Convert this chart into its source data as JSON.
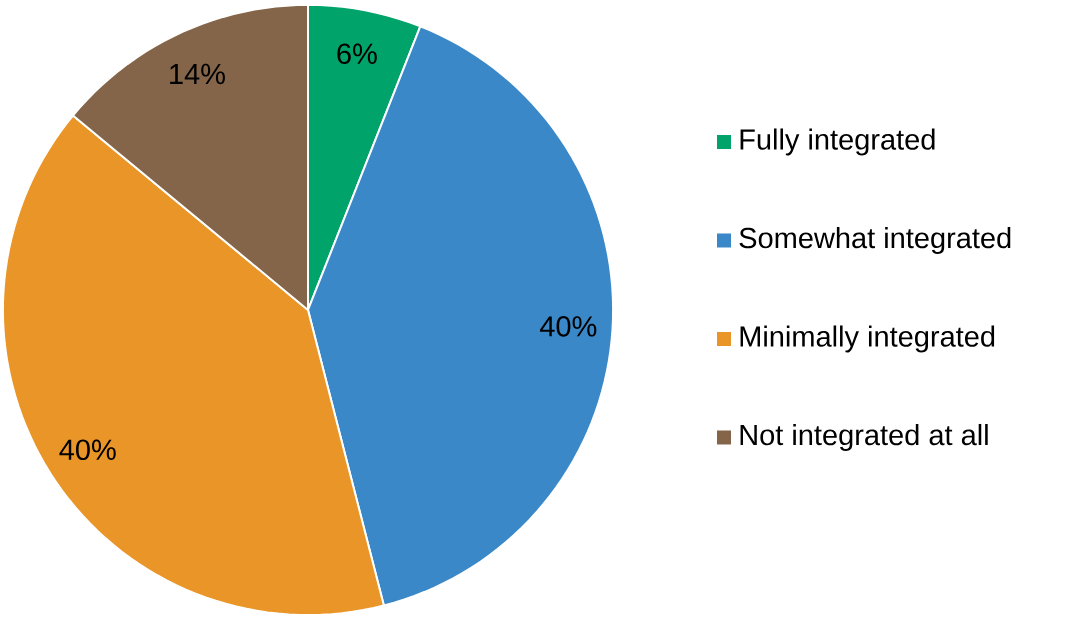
{
  "chart_data": {
    "type": "pie",
    "categories": [
      "Fully integrated",
      "Somewhat integrated",
      "Minimally integrated",
      "Not integrated at all"
    ],
    "values": [
      6,
      40,
      40,
      14
    ],
    "colors": [
      "#00a36a",
      "#3a88c8",
      "#ea9527",
      "#846549"
    ],
    "data_labels": true,
    "value_labels": [
      "6%",
      "40%",
      "40%",
      "14%"
    ],
    "legend": "right"
  }
}
